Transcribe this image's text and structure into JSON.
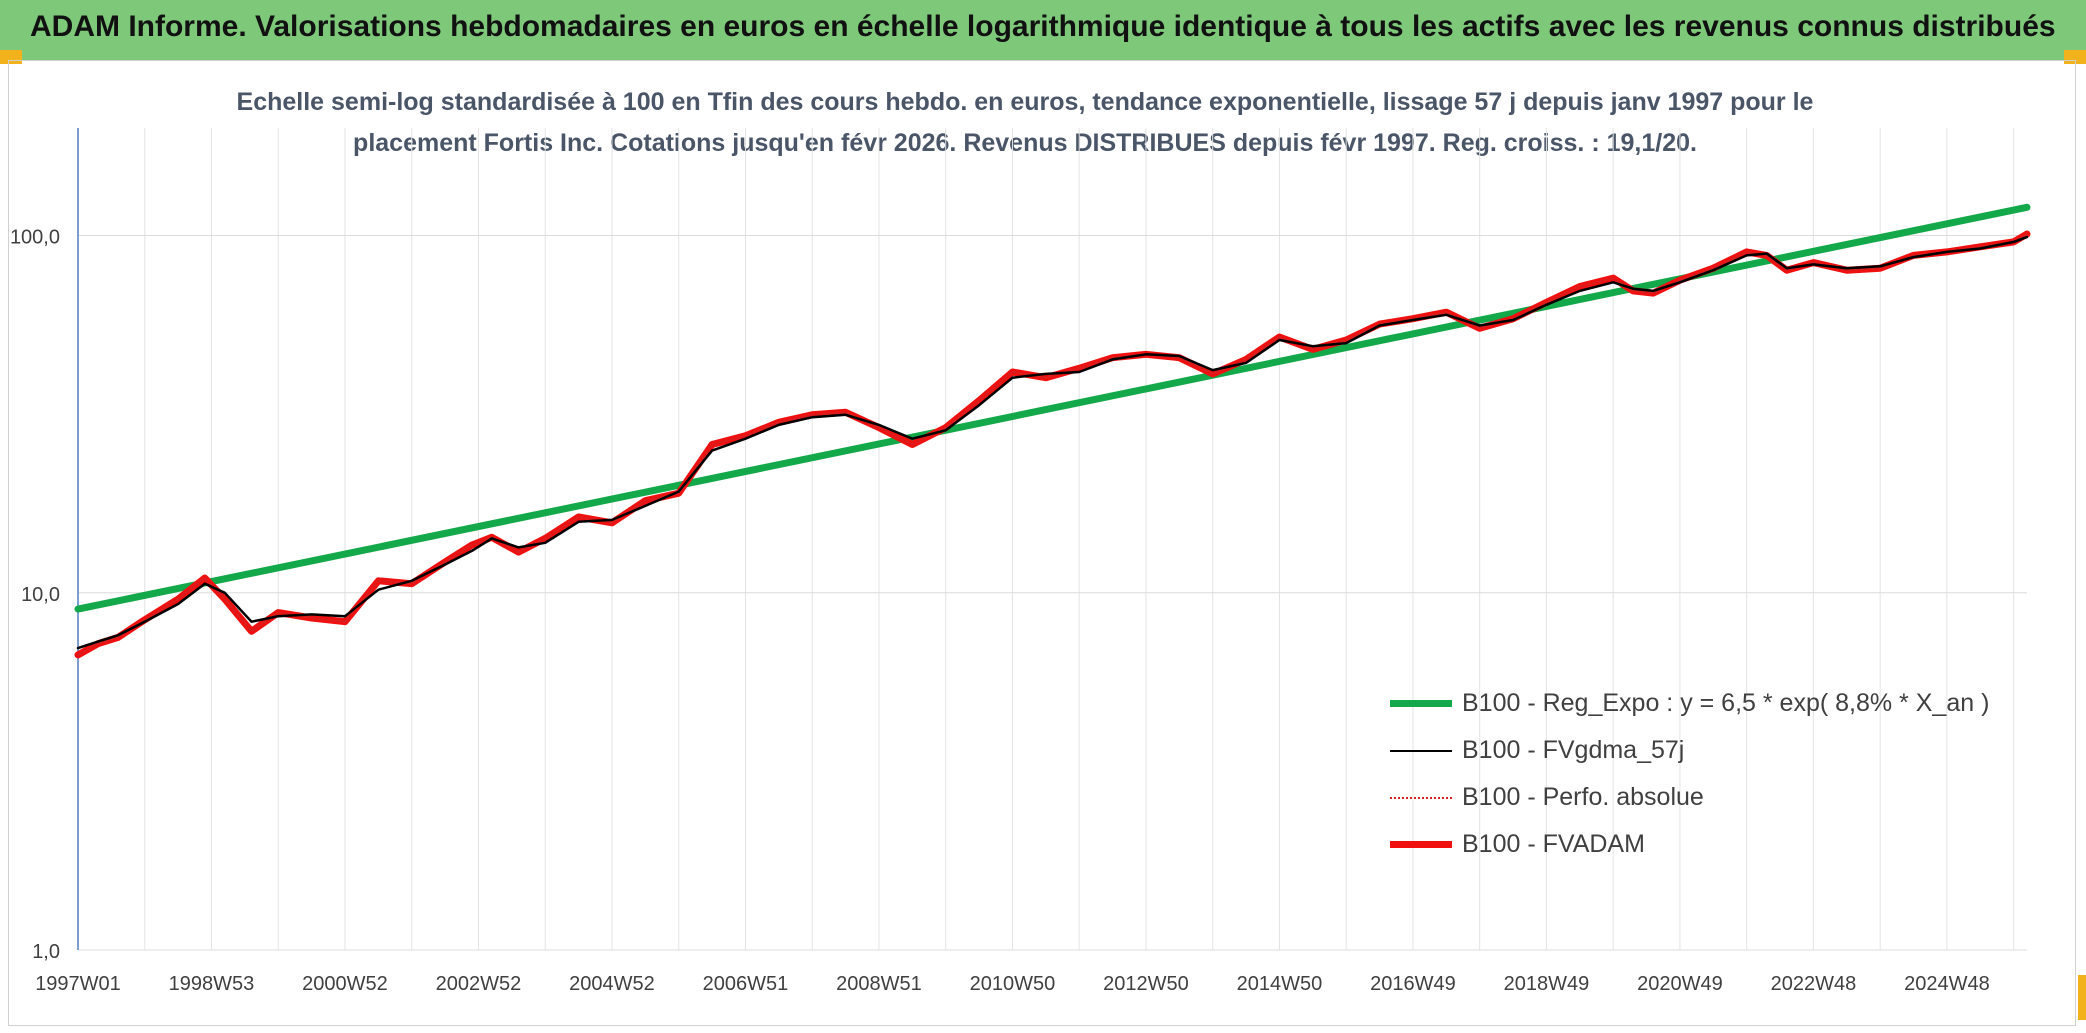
{
  "banner": {
    "title": "ADAM Informe. Valorisations hebdomadaires en euros en échelle logarithmique identique à tous les actifs avec les revenus connus distribués",
    "color": "#7ec87a"
  },
  "chart_data": {
    "type": "line",
    "title_line1": "Echelle semi-log standardisée à 100 en Tfin des cours hebdo. en euros, tendance exponentielle, lissage 57 j depuis janv 1997 pour le",
    "title_line2": "placement Fortis Inc. Cotations jusqu'en févr 2026. Revenus DISTRIBUES depuis févr 1997. Reg. croiss. : 19,1/20.",
    "y_scale": "log",
    "ylim": [
      1,
      200
    ],
    "y_ticks": [
      {
        "value": 1,
        "label": "1,0"
      },
      {
        "value": 10,
        "label": "10,0"
      },
      {
        "value": 100,
        "label": "100,0"
      }
    ],
    "xlim": [
      1997.0,
      2026.2
    ],
    "x_ticks": [
      {
        "value": 1997.0,
        "label": "1997W01"
      },
      {
        "value": 1999.0,
        "label": "1998W53"
      },
      {
        "value": 2001.0,
        "label": "2000W52"
      },
      {
        "value": 2003.0,
        "label": "2002W52"
      },
      {
        "value": 2005.0,
        "label": "2004W52"
      },
      {
        "value": 2007.0,
        "label": "2006W51"
      },
      {
        "value": 2009.0,
        "label": "2008W51"
      },
      {
        "value": 2011.0,
        "label": "2010W50"
      },
      {
        "value": 2013.0,
        "label": "2012W50"
      },
      {
        "value": 2015.0,
        "label": "2014W50"
      },
      {
        "value": 2017.0,
        "label": "2016W49"
      },
      {
        "value": 2019.0,
        "label": "2018W49"
      },
      {
        "value": 2021.0,
        "label": "2020W49"
      },
      {
        "value": 2023.0,
        "label": "2022W48"
      },
      {
        "value": 2025.0,
        "label": "2024W48"
      }
    ],
    "grid": true,
    "legend_position": "bottom-right",
    "series": [
      {
        "name": "B100 - Reg_Expo : y = 6,5 * exp( 8,8% *  X_an )",
        "color": "#13a84a",
        "style": "solid-thick",
        "x": [
          1997.0,
          2026.2
        ],
        "y": [
          9.0,
          120.0
        ]
      },
      {
        "name": "B100 - FVgdma_57j",
        "color": "#000000",
        "style": "solid-thin",
        "x": [
          1997.0,
          1997.3,
          1997.6,
          1998.0,
          1998.5,
          1998.9,
          1999.2,
          1999.6,
          2000.0,
          2000.5,
          2001.0,
          2001.5,
          2002.0,
          2002.5,
          2002.9,
          2003.2,
          2003.6,
          2004.0,
          2004.5,
          2005.0,
          2005.5,
          2006.0,
          2006.5,
          2007.0,
          2007.5,
          2008.0,
          2008.5,
          2009.0,
          2009.5,
          2010.0,
          2010.5,
          2011.0,
          2011.5,
          2012.0,
          2012.5,
          2013.0,
          2013.5,
          2014.0,
          2014.5,
          2015.0,
          2015.5,
          2016.0,
          2016.5,
          2017.0,
          2017.5,
          2018.0,
          2018.5,
          2019.0,
          2019.5,
          2020.0,
          2020.3,
          2020.6,
          2021.0,
          2021.5,
          2022.0,
          2022.3,
          2022.6,
          2023.0,
          2023.5,
          2024.0,
          2024.5,
          2025.0,
          2025.5,
          2026.0,
          2026.2
        ],
        "y": [
          7.0,
          7.3,
          7.6,
          8.3,
          9.3,
          10.6,
          10.0,
          8.3,
          8.6,
          8.7,
          8.6,
          10.2,
          10.8,
          12.0,
          13.1,
          14.2,
          13.4,
          13.8,
          15.8,
          16.0,
          17.5,
          19.2,
          25.0,
          27.0,
          29.5,
          31.0,
          31.5,
          29.5,
          27.0,
          28.5,
          33.5,
          40.0,
          41.0,
          41.5,
          45.0,
          46.5,
          46.0,
          42.0,
          44.0,
          51.0,
          49.0,
          50.0,
          56.0,
          58.0,
          60.0,
          56.0,
          58.0,
          64.0,
          70.0,
          74.0,
          71.0,
          70.0,
          74.0,
          80.0,
          88.0,
          89.0,
          81.0,
          83.0,
          81.0,
          82.0,
          87.0,
          90.0,
          92.0,
          96.0,
          99.0
        ]
      },
      {
        "name": "B100 - Perfo. absolue",
        "color": "#d42020",
        "style": "dotted",
        "x": [
          1997.0,
          1997.3,
          1997.6,
          1998.0,
          1998.5,
          1998.9,
          1999.2,
          1999.6,
          2000.0,
          2000.5,
          2001.0,
          2001.5,
          2002.0,
          2002.5,
          2002.9,
          2003.2,
          2003.6,
          2004.0,
          2004.5,
          2005.0,
          2005.5,
          2006.0,
          2006.5,
          2007.0,
          2007.5,
          2008.0,
          2008.5,
          2009.0,
          2009.5,
          2010.0,
          2010.5,
          2011.0,
          2011.5,
          2012.0,
          2012.5,
          2013.0,
          2013.5,
          2014.0,
          2014.5,
          2015.0,
          2015.5,
          2016.0,
          2016.5,
          2017.0,
          2017.5,
          2018.0,
          2018.5,
          2019.0,
          2019.5,
          2020.0,
          2020.3,
          2020.6,
          2021.0,
          2021.5,
          2022.0,
          2022.3,
          2022.6,
          2023.0,
          2023.5,
          2024.0,
          2024.5,
          2025.0,
          2025.5,
          2026.0,
          2026.2
        ],
        "y": [
          6.7,
          7.2,
          7.5,
          8.4,
          9.6,
          11.0,
          9.6,
          7.8,
          8.8,
          8.5,
          8.3,
          10.8,
          10.6,
          12.2,
          13.6,
          14.3,
          13.0,
          14.2,
          16.3,
          15.7,
          18.1,
          19.0,
          26.0,
          27.5,
          30.0,
          31.5,
          32.0,
          29.0,
          26.0,
          29.0,
          34.5,
          41.5,
          40.0,
          42.5,
          45.5,
          46.5,
          45.5,
          41.0,
          45.0,
          52.0,
          48.0,
          51.0,
          56.5,
          58.5,
          61.0,
          55.0,
          58.5,
          65.0,
          72.0,
          76.0,
          70.0,
          69.0,
          75.0,
          81.0,
          90.0,
          88.0,
          80.0,
          84.0,
          80.0,
          81.0,
          88.0,
          90.0,
          93.0,
          96.0,
          101.0
        ]
      },
      {
        "name": "B100 - FVADAM",
        "color": "#f01010",
        "style": "solid-thick",
        "x": [
          1997.0,
          1997.3,
          1997.6,
          1998.0,
          1998.5,
          1998.9,
          1999.2,
          1999.6,
          2000.0,
          2000.5,
          2001.0,
          2001.5,
          2002.0,
          2002.5,
          2002.9,
          2003.2,
          2003.6,
          2004.0,
          2004.5,
          2005.0,
          2005.5,
          2006.0,
          2006.5,
          2007.0,
          2007.5,
          2008.0,
          2008.5,
          2009.0,
          2009.5,
          2010.0,
          2010.5,
          2011.0,
          2011.5,
          2012.0,
          2012.5,
          2013.0,
          2013.5,
          2014.0,
          2014.5,
          2015.0,
          2015.5,
          2016.0,
          2016.5,
          2017.0,
          2017.5,
          2018.0,
          2018.5,
          2019.0,
          2019.5,
          2020.0,
          2020.3,
          2020.6,
          2021.0,
          2021.5,
          2022.0,
          2022.3,
          2022.6,
          2023.0,
          2023.5,
          2024.0,
          2024.5,
          2025.0,
          2025.5,
          2026.0,
          2026.2
        ],
        "y": [
          6.7,
          7.2,
          7.5,
          8.4,
          9.6,
          11.0,
          9.6,
          7.8,
          8.8,
          8.5,
          8.3,
          10.8,
          10.6,
          12.2,
          13.6,
          14.3,
          13.0,
          14.2,
          16.3,
          15.7,
          18.1,
          19.0,
          26.0,
          27.5,
          30.0,
          31.5,
          32.0,
          29.0,
          26.0,
          29.0,
          34.5,
          41.5,
          40.0,
          42.5,
          45.5,
          46.5,
          45.5,
          41.0,
          45.0,
          52.0,
          48.0,
          51.0,
          56.5,
          58.5,
          61.0,
          55.0,
          58.5,
          65.0,
          72.0,
          76.0,
          70.0,
          69.0,
          75.0,
          81.0,
          90.0,
          88.0,
          80.0,
          84.0,
          80.0,
          81.0,
          88.0,
          90.0,
          93.0,
          96.0,
          101.0
        ]
      }
    ]
  }
}
